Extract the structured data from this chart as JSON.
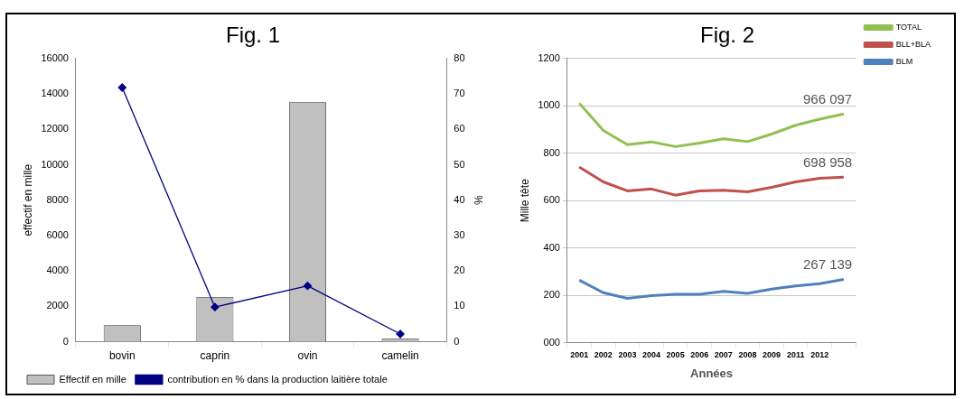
{
  "chart_data": [
    {
      "type": "bar",
      "title": "Fig. 1",
      "ylabel": "effectif en mille",
      "y2label": "%",
      "categories": [
        "bovin",
        "caprin",
        "ovin",
        "camelin"
      ],
      "series": [
        {
          "name": "Effectif en mille",
          "color": "#c0c0c0",
          "values": [
            940,
            2530,
            13530,
            180
          ]
        },
        {
          "name": "contribution en % dans la production laitière totale",
          "type": "line",
          "axis": "y2",
          "marker": "diamond",
          "color": "#000080",
          "values": [
            71.8,
            9.8,
            15.8,
            2.2
          ]
        }
      ],
      "ylim": [
        0,
        16000
      ],
      "yticks": [
        0,
        2000,
        4000,
        6000,
        8000,
        10000,
        12000,
        14000,
        16000
      ],
      "y2lim": [
        0,
        80
      ],
      "y2ticks": [
        0,
        10,
        20,
        30,
        40,
        50,
        60,
        70,
        80
      ],
      "legend": "bottom"
    },
    {
      "type": "line",
      "title": "Fig. 2",
      "xlabel": "Années",
      "ylabel": "Mille tête",
      "categories": [
        "2001",
        "2002",
        "2003",
        "2004",
        "2005",
        "2006",
        "2007",
        "2008",
        "2009",
        "2011",
        "2012",
        null
      ],
      "series": [
        {
          "name": "TOTAL",
          "color": "#92c050",
          "values": [
            1011,
            896,
            836,
            848,
            828,
            843,
            861,
            849,
            881,
            918,
            944,
            966
          ]
        },
        {
          "name": "BLL+BLA",
          "color": "#c0504d",
          "values": [
            742,
            679,
            641,
            649,
            623,
            641,
            644,
            637,
            656,
            679,
            694,
            699
          ]
        },
        {
          "name": "BLM",
          "color": "#4f81bd",
          "values": [
            264,
            211,
            187,
            199,
            204,
            204,
            217,
            208,
            226,
            240,
            249,
            267
          ]
        }
      ],
      "annotations": [
        {
          "text": "966 097",
          "y": 966
        },
        {
          "text": "698 958",
          "y": 699
        },
        {
          "text": "267 139",
          "y": 267
        }
      ],
      "ylim": [
        0,
        1200
      ],
      "yticks": [
        {
          "value": 0,
          "label": "000"
        },
        200,
        400,
        600,
        800,
        1000,
        1200
      ],
      "grid": "y",
      "legend": "right",
      "marker": "none"
    }
  ]
}
